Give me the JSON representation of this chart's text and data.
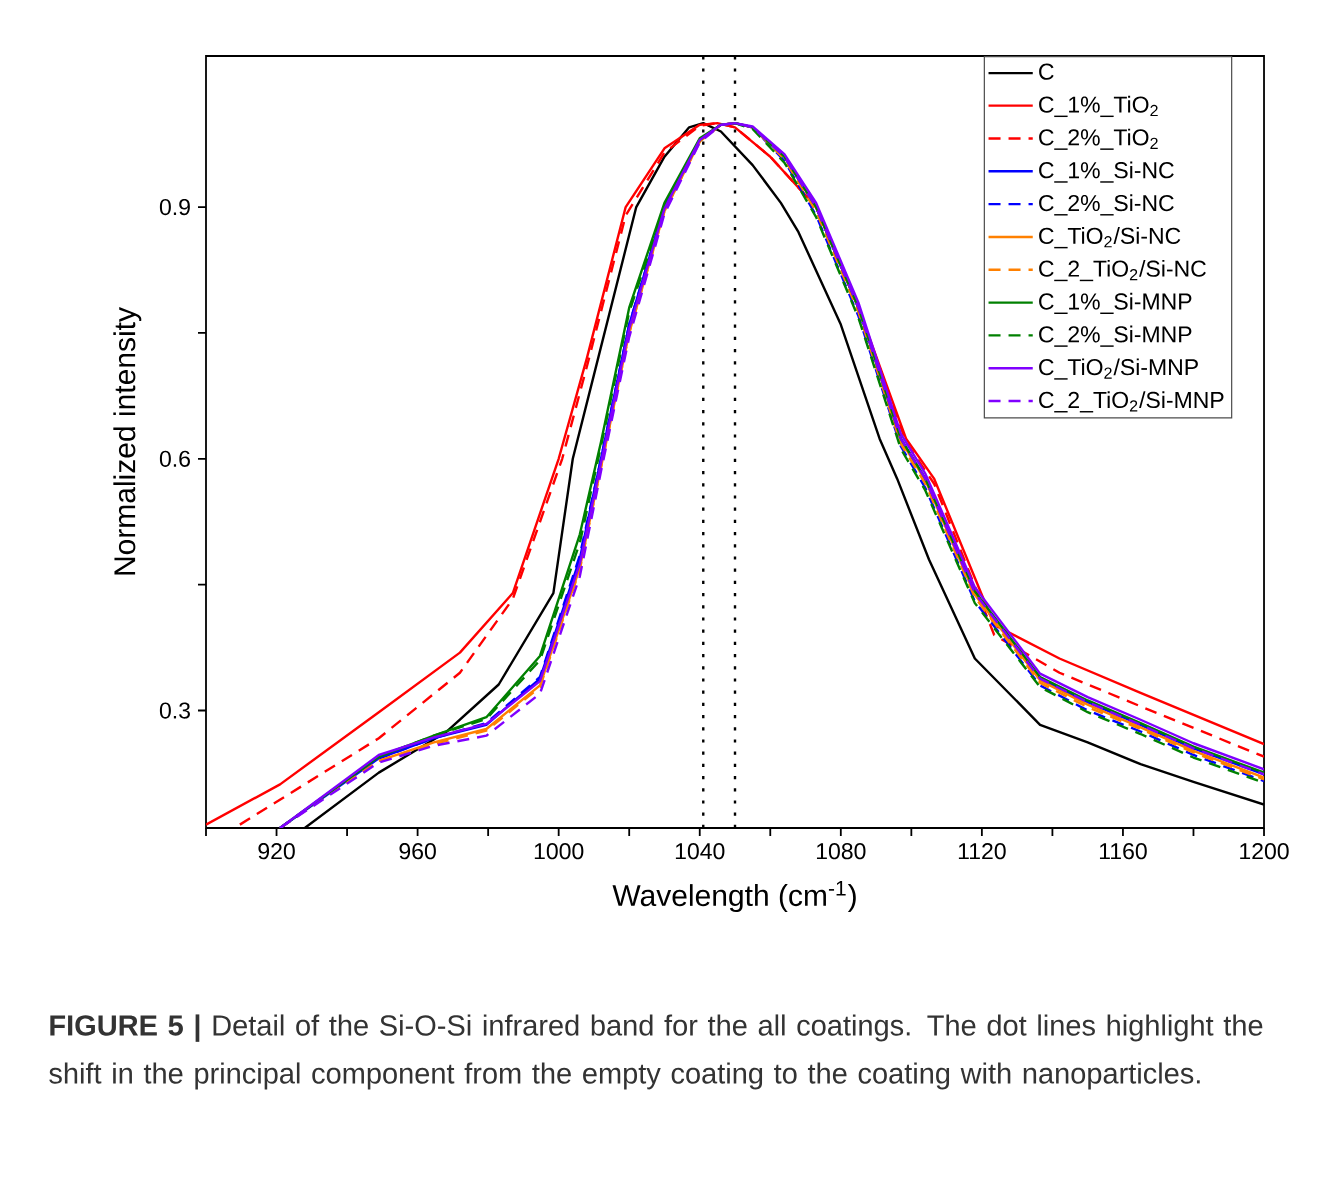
{
  "chart_data": {
    "type": "line",
    "xlabel": "Wavelength (cm$^{-1}$)",
    "ylabel": "Normalized intensity",
    "xlim": [
      900,
      1200
    ],
    "ylim": [
      0.16,
      1.08
    ],
    "xticks": [
      {
        "value": 900,
        "label": null
      },
      920,
      {
        "value": 940,
        "label": null
      },
      960,
      {
        "value": 980,
        "label": null
      },
      1000,
      {
        "value": 1020,
        "label": null
      },
      1040,
      {
        "value": 1060,
        "label": null
      },
      1080,
      {
        "value": 1100,
        "label": null
      },
      1120,
      {
        "value": 1140,
        "label": null
      },
      1160,
      {
        "value": 1180,
        "label": null
      },
      1200
    ],
    "yticks": [
      0.3,
      {
        "value": 0.45,
        "label": null
      },
      0.6,
      {
        "value": 0.75,
        "label": null
      },
      0.9
    ],
    "grid": false,
    "legend": "top right",
    "marker": "none",
    "ref_lines": [
      {
        "axis": "x",
        "value": 1041,
        "color": "#000000",
        "line_style": "dotted"
      },
      {
        "axis": "x",
        "value": 1050,
        "color": "#000000",
        "line_style": "dotted"
      }
    ],
    "annotations": [
      "**FIGURE 5 |** Detail of the Si-O-Si infrared band for the all coatings. The dot lines highlight the shift in the principal component from the empty coating to the coating with nanoparticles."
    ],
    "series": [
      {
        "name": "C",
        "color": "#000000",
        "line_style": "solid",
        "x": [
          928,
          949,
          968,
          983,
          998.5,
          1004,
          1010,
          1022,
          1030,
          1037,
          1041,
          1046,
          1055,
          1063,
          1068,
          1080,
          1091,
          1096,
          1105,
          1118,
          1136.5,
          1150,
          1165,
          1180,
          1200
        ],
        "values": [
          0.16,
          0.226,
          0.274,
          0.331,
          0.44,
          0.6,
          0.7,
          0.9,
          0.96,
          0.995,
          1.0,
          0.99,
          0.95,
          0.905,
          0.87,
          0.76,
          0.624,
          0.576,
          0.48,
          0.362,
          0.283,
          0.262,
          0.236,
          0.215,
          0.188
        ]
      },
      {
        "name": "C_1%_TiO$_{2}$",
        "color": "#ff0000",
        "line_style": "solid",
        "x": [
          900,
          921,
          949,
          972,
          987,
          1000,
          1008,
          1019,
          1030,
          1040,
          1045,
          1050,
          1060,
          1073,
          1085,
          1098.5,
          1106.5,
          1123.5,
          1142,
          1165,
          1200
        ],
        "values": [
          0.164,
          0.212,
          0.298,
          0.369,
          0.44,
          0.6,
          0.72,
          0.9,
          0.97,
          0.998,
          1.0,
          0.995,
          0.96,
          0.9,
          0.78,
          0.624,
          0.576,
          0.402,
          0.362,
          0.321,
          0.26
        ]
      },
      {
        "name": "C_2%_TiO$_{2}$",
        "color": "#ff0000",
        "line_style": "dashed",
        "x": [
          909.6,
          949,
          972,
          987,
          1001,
          1008,
          1019,
          1030,
          1040,
          1045,
          1050,
          1060,
          1073,
          1085,
          1098.5,
          1106.5,
          1123.5,
          1142,
          1165,
          1200
        ],
        "values": [
          0.164,
          0.267,
          0.345,
          0.433,
          0.6,
          0.71,
          0.89,
          0.965,
          0.997,
          1.0,
          0.995,
          0.96,
          0.9,
          0.78,
          0.62,
          0.57,
          0.39,
          0.345,
          0.305,
          0.245
        ]
      },
      {
        "name": "C_1%_Si-NC",
        "color": "#0000ff",
        "line_style": "solid",
        "x": [
          921,
          949,
          964.6,
          979.5,
          994.7,
          1006,
          1012,
          1020,
          1030,
          1040,
          1046,
          1050,
          1055,
          1064,
          1073,
          1085,
          1097,
          1104,
          1118,
          1136.5,
          1150,
          1165,
          1180,
          1200
        ],
        "values": [
          0.16,
          0.243,
          0.267,
          0.283,
          0.338,
          0.481,
          0.6,
          0.76,
          0.9,
          0.98,
          0.998,
          1.0,
          0.995,
          0.96,
          0.9,
          0.78,
          0.624,
          0.576,
          0.44,
          0.338,
          0.31,
          0.283,
          0.255,
          0.224
        ]
      },
      {
        "name": "C_2%_Si-NC",
        "color": "#0000ff",
        "line_style": "dashed",
        "x": [
          921,
          949,
          964.6,
          979.5,
          994.7,
          1006,
          1012,
          1020,
          1030,
          1040,
          1046,
          1050,
          1055,
          1064,
          1073,
          1085,
          1097,
          1104,
          1118,
          1136.5,
          1150,
          1165,
          1180,
          1200
        ],
        "values": [
          0.16,
          0.243,
          0.267,
          0.285,
          0.34,
          0.485,
          0.6,
          0.76,
          0.9,
          0.98,
          0.998,
          1.0,
          0.995,
          0.955,
          0.89,
          0.77,
          0.615,
          0.565,
          0.43,
          0.33,
          0.3,
          0.275,
          0.247,
          0.216
        ]
      },
      {
        "name": "C_TiO$_{2}$/Si-NC",
        "color": "#ff8000",
        "line_style": "solid",
        "x": [
          949,
          964.6,
          979.5,
          994.7,
          1006,
          1012,
          1020,
          1030,
          1040,
          1046,
          1050,
          1055,
          1064,
          1073,
          1085,
          1097,
          1104,
          1118,
          1136.5,
          1150,
          1165,
          1180,
          1200
        ],
        "values": [
          0.24,
          0.262,
          0.278,
          0.33,
          0.47,
          0.59,
          0.75,
          0.895,
          0.978,
          0.998,
          1.0,
          0.995,
          0.96,
          0.9,
          0.78,
          0.622,
          0.574,
          0.438,
          0.336,
          0.307,
          0.28,
          0.252,
          0.22
        ]
      },
      {
        "name": "C_2_TiO$_{2}$/Si-NC",
        "color": "#ff8000",
        "line_style": "dashed",
        "x": [
          921,
          949,
          964.6,
          979.5,
          994.7,
          1006,
          1012,
          1020,
          1030,
          1040,
          1046,
          1050,
          1055,
          1064,
          1073,
          1085,
          1097,
          1104,
          1118,
          1136.5,
          1150,
          1165,
          1180,
          1200
        ],
        "values": [
          0.16,
          0.24,
          0.26,
          0.276,
          0.328,
          0.468,
          0.59,
          0.75,
          0.895,
          0.978,
          0.998,
          1.0,
          0.995,
          0.957,
          0.895,
          0.775,
          0.618,
          0.57,
          0.435,
          0.333,
          0.304,
          0.278,
          0.25,
          0.218
        ]
      },
      {
        "name": "C_1%_Si-MNP",
        "color": "#008000",
        "line_style": "solid",
        "x": [
          921,
          949,
          964.6,
          979.5,
          994.7,
          1006,
          1012,
          1020,
          1030,
          1040,
          1046,
          1050,
          1055,
          1064,
          1073,
          1085,
          1097,
          1104,
          1118,
          1136.5,
          1150,
          1165,
          1180,
          1200
        ],
        "values": [
          0.16,
          0.245,
          0.27,
          0.292,
          0.365,
          0.51,
          0.62,
          0.78,
          0.905,
          0.982,
          0.998,
          1.0,
          0.995,
          0.96,
          0.9,
          0.78,
          0.624,
          0.576,
          0.442,
          0.34,
          0.312,
          0.285,
          0.257,
          0.226
        ]
      },
      {
        "name": "C_2%_Si-MNP",
        "color": "#008000",
        "line_style": "dashed",
        "x": [
          921,
          949,
          964.6,
          979.5,
          994.7,
          1006,
          1012,
          1020,
          1030,
          1040,
          1046,
          1050,
          1055,
          1064,
          1073,
          1085,
          1097,
          1104,
          1118,
          1136.5,
          1150,
          1165,
          1180,
          1200
        ],
        "values": [
          0.16,
          0.245,
          0.27,
          0.29,
          0.36,
          0.5,
          0.615,
          0.775,
          0.9,
          0.98,
          0.998,
          1.0,
          0.993,
          0.953,
          0.888,
          0.768,
          0.612,
          0.562,
          0.428,
          0.328,
          0.298,
          0.272,
          0.244,
          0.214
        ]
      },
      {
        "name": "C_TiO$_{2}$/Si-MNP",
        "color": "#8000ff",
        "line_style": "solid",
        "x": [
          921,
          949,
          964.6,
          979.5,
          994.7,
          1006,
          1012,
          1020,
          1030,
          1040,
          1046,
          1050,
          1055,
          1064,
          1073,
          1085,
          1097,
          1104,
          1118,
          1136.5,
          1150,
          1165,
          1180,
          1200
        ],
        "values": [
          0.16,
          0.247,
          0.268,
          0.284,
          0.335,
          0.475,
          0.595,
          0.755,
          0.898,
          0.98,
          0.998,
          1.0,
          0.996,
          0.963,
          0.905,
          0.786,
          0.63,
          0.582,
          0.447,
          0.344,
          0.316,
          0.289,
          0.261,
          0.23
        ]
      },
      {
        "name": "C_2_TiO$_{2}$/Si-MNP",
        "color": "#8000ff",
        "line_style": "dashed",
        "x": [
          921,
          949,
          964.6,
          979.5,
          994.7,
          1006,
          1012,
          1020,
          1030,
          1040,
          1046,
          1050,
          1055,
          1064,
          1073,
          1085,
          1097,
          1104,
          1118,
          1136.5,
          1150,
          1165,
          1180,
          1200
        ],
        "values": [
          0.16,
          0.238,
          0.258,
          0.27,
          0.32,
          0.46,
          0.585,
          0.745,
          0.892,
          0.977,
          0.998,
          1.0,
          0.995,
          0.96,
          0.9,
          0.78,
          0.624,
          0.576,
          0.44,
          0.338,
          0.31,
          0.283,
          0.255,
          0.224
        ]
      }
    ]
  }
}
